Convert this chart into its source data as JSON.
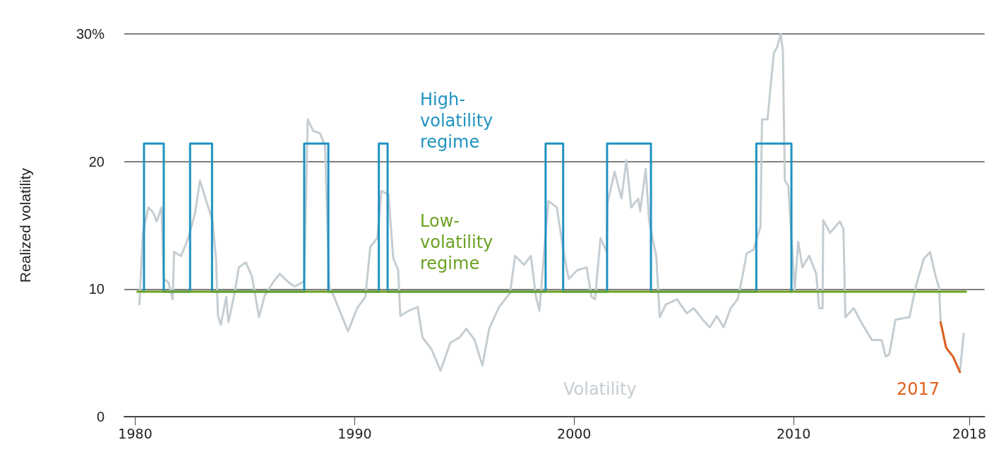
{
  "chart_data": {
    "type": "line",
    "ylabel": "Realized volatility",
    "xlim": [
      1979.5,
      2018.7
    ],
    "xticks": [
      1980,
      1990,
      2000,
      2010,
      2018
    ],
    "ylim": [
      0,
      30
    ],
    "yticks": [
      0,
      10,
      20,
      {
        "value": 30,
        "label": "30%"
      }
    ],
    "grid": "y",
    "legend": false,
    "marker": "none",
    "line_style": "solid",
    "series": [
      {
        "name": "Volatility",
        "color": "#c5cdd2",
        "x": [
          1980.19,
          1980.35,
          1980.6,
          1980.82,
          1980.98,
          1981.2,
          1981.3,
          1981.52,
          1981.71,
          1981.77,
          1982.09,
          1982.35,
          1982.5,
          1982.73,
          1982.95,
          1983.2,
          1983.52,
          1983.68,
          1983.77,
          1983.9,
          1984.15,
          1984.25,
          1984.53,
          1984.72,
          1985.04,
          1985.32,
          1985.64,
          1985.9,
          1986.31,
          1986.59,
          1986.94,
          1987.26,
          1987.7,
          1987.86,
          1988.11,
          1988.43,
          1988.65,
          1988.84,
          1989.06,
          1989.48,
          1989.7,
          1990.11,
          1990.49,
          1990.71,
          1991.03,
          1991.22,
          1991.54,
          1991.76,
          1991.98,
          1992.08,
          1992.46,
          1992.87,
          1993.09,
          1993.5,
          1993.91,
          1994.36,
          1994.77,
          1995.09,
          1995.47,
          1995.82,
          1996.13,
          1996.58,
          1997.08,
          1997.31,
          1997.72,
          1998.03,
          1998.26,
          1998.42,
          1998.67,
          1998.83,
          1999.21,
          1999.52,
          1999.75,
          2000.16,
          2000.57,
          2000.79,
          2000.95,
          2001.2,
          2001.49,
          2001.52,
          2001.84,
          2002.16,
          2002.38,
          2002.6,
          2002.92,
          2003.01,
          2003.26,
          2003.42,
          2003.74,
          2003.9,
          2004.18,
          2004.69,
          2005.13,
          2005.45,
          2005.86,
          2006.18,
          2006.5,
          2006.81,
          2007.13,
          2007.45,
          2007.67,
          2007.86,
          2008.18,
          2008.49,
          2008.56,
          2008.81,
          2009.1,
          2009.26,
          2009.41,
          2009.51,
          2009.6,
          2009.76,
          2010.05,
          2010.21,
          2010.4,
          2010.71,
          2011.03,
          2011.16,
          2011.32,
          2011.35,
          2011.66,
          2012.11,
          2012.27,
          2012.36,
          2012.74,
          2013.15,
          2013.57,
          2014.01,
          2014.2,
          2014.36,
          2014.64,
          2015.28,
          2015.47,
          2015.63,
          2015.94,
          2016.22,
          2016.47,
          2016.63,
          2016.7,
          2016.95,
          2017.27,
          2017.58,
          2017.75
        ],
        "values": [
          8.8,
          14.4,
          16.4,
          16.0,
          15.3,
          16.4,
          10.8,
          10.5,
          9.2,
          12.9,
          12.6,
          13.7,
          14.5,
          16.0,
          18.5,
          17.1,
          15.4,
          12.4,
          7.9,
          7.2,
          9.4,
          7.4,
          9.7,
          11.7,
          12.1,
          11.0,
          7.8,
          9.5,
          10.6,
          11.2,
          10.6,
          10.2,
          10.6,
          23.3,
          22.4,
          22.2,
          21.2,
          10.2,
          9.4,
          7.6,
          6.7,
          8.5,
          9.4,
          13.3,
          14.0,
          17.7,
          17.4,
          12.4,
          11.5,
          7.9,
          8.3,
          8.6,
          6.2,
          5.3,
          3.6,
          5.8,
          6.2,
          6.9,
          6.0,
          4.0,
          6.9,
          8.6,
          9.7,
          12.6,
          11.9,
          12.6,
          9.4,
          8.3,
          13.7,
          16.9,
          16.4,
          12.9,
          10.8,
          11.5,
          11.7,
          9.4,
          9.2,
          14.0,
          12.9,
          16.7,
          19.2,
          17.1,
          20.1,
          16.4,
          17.1,
          16.1,
          19.4,
          15.3,
          12.6,
          7.8,
          8.8,
          9.2,
          8.1,
          8.5,
          7.6,
          7.0,
          7.9,
          7.0,
          8.5,
          9.2,
          11.0,
          12.8,
          13.1,
          14.9,
          23.3,
          23.3,
          28.5,
          29.0,
          30.0,
          28.7,
          18.5,
          18.1,
          9.9,
          13.7,
          11.7,
          12.6,
          11.2,
          8.5,
          8.5,
          15.4,
          14.4,
          15.3,
          14.7,
          7.8,
          8.5,
          7.2,
          6.0,
          6.0,
          4.7,
          4.9,
          7.6,
          7.8,
          9.4,
          10.6,
          12.4,
          12.9,
          11.0,
          10.1,
          7.4,
          5.4,
          4.7,
          3.5,
          6.5
        ]
      },
      {
        "name": "High-volatility regime",
        "color": "#1f93c0",
        "x": [
          1980.4,
          1980.4,
          1981.3,
          1981.3,
          1982.5,
          1982.5,
          1983.5,
          1983.5,
          1987.7,
          1987.7,
          1988.8,
          1988.8,
          1991.1,
          1991.1,
          1991.5,
          1991.5,
          1998.7,
          1998.7,
          1999.5,
          1999.5,
          2001.5,
          2001.5,
          2003.5,
          2003.5,
          2008.3,
          2008.3,
          2009.9,
          2009.9
        ],
        "values": [
          9.8,
          21.4,
          21.4,
          9.8,
          9.8,
          21.4,
          21.4,
          9.8,
          9.8,
          21.4,
          21.4,
          9.8,
          9.8,
          21.4,
          21.4,
          9.8,
          9.8,
          21.4,
          21.4,
          9.8,
          9.8,
          21.4,
          21.4,
          9.8,
          9.8,
          21.4,
          21.4,
          9.8
        ]
      },
      {
        "name": "Low-volatility regime",
        "color": "#6aa121",
        "x": [
          1980.1,
          2017.85
        ],
        "values": [
          9.8,
          9.8
        ]
      },
      {
        "name": "2017",
        "color": "#e0601f",
        "x": [
          2016.7,
          2016.95,
          2017.27,
          2017.58
        ],
        "values": [
          7.4,
          5.4,
          4.7,
          3.5
        ]
      }
    ]
  }
}
